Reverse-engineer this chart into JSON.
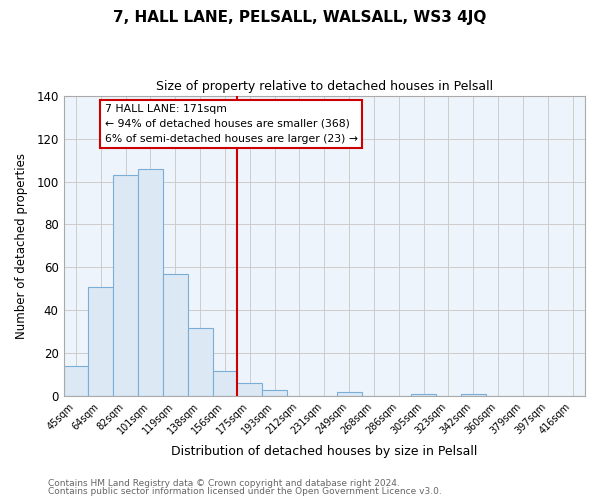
{
  "title": "7, HALL LANE, PELSALL, WALSALL, WS3 4JQ",
  "subtitle": "Size of property relative to detached houses in Pelsall",
  "xlabel": "Distribution of detached houses by size in Pelsall",
  "ylabel": "Number of detached properties",
  "bin_labels": [
    "45sqm",
    "64sqm",
    "82sqm",
    "101sqm",
    "119sqm",
    "138sqm",
    "156sqm",
    "175sqm",
    "193sqm",
    "212sqm",
    "231sqm",
    "249sqm",
    "268sqm",
    "286sqm",
    "305sqm",
    "323sqm",
    "342sqm",
    "360sqm",
    "379sqm",
    "397sqm",
    "416sqm"
  ],
  "bar_heights": [
    14,
    51,
    103,
    106,
    57,
    32,
    12,
    6,
    3,
    0,
    0,
    2,
    0,
    0,
    1,
    0,
    1,
    0,
    0,
    0,
    0
  ],
  "bar_color": "#dce9f5",
  "bar_edge_color": "#7aaed6",
  "vline_x_index": 6.5,
  "vline_color": "#cc0000",
  "annotation_line1": "7 HALL LANE: 171sqm",
  "annotation_line2": "← 94% of detached houses are smaller (368)",
  "annotation_line3": "6% of semi-detached houses are larger (23) →",
  "annotation_box_color": "#ffffff",
  "annotation_box_edge": "#cc0000",
  "ylim": [
    0,
    140
  ],
  "yticks": [
    0,
    20,
    40,
    60,
    80,
    100,
    120,
    140
  ],
  "grid_color": "#cccccc",
  "footer1": "Contains HM Land Registry data © Crown copyright and database right 2024.",
  "footer2": "Contains public sector information licensed under the Open Government Licence v3.0.",
  "bg_color": "#eef4fb"
}
